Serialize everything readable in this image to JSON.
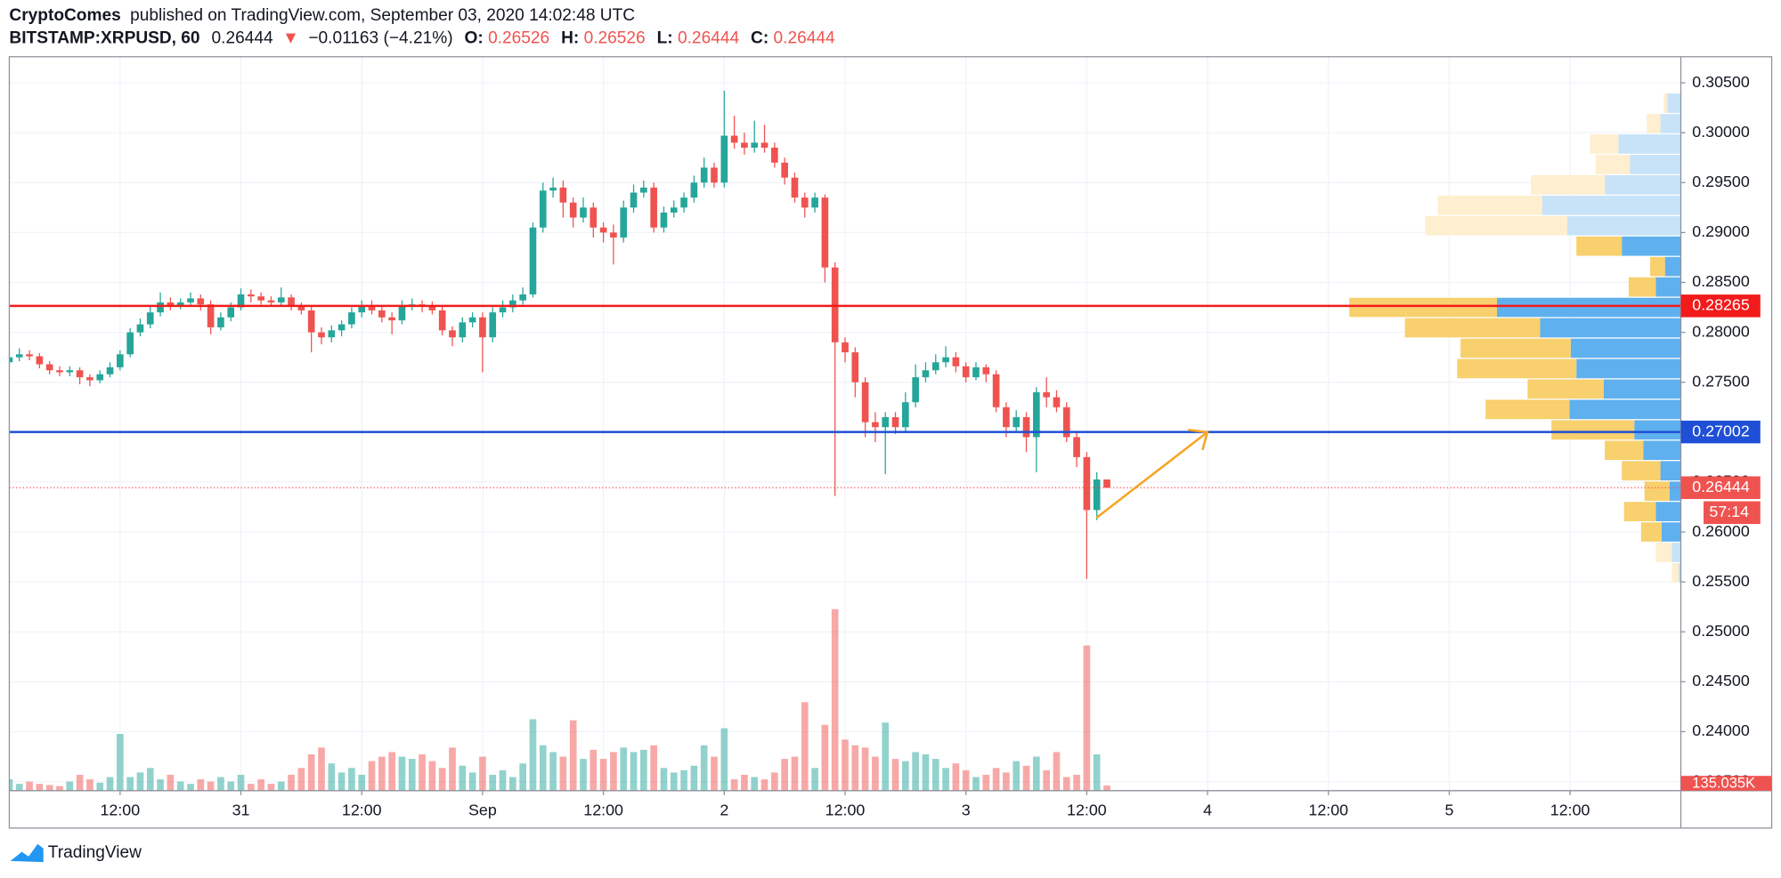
{
  "chart_data": {
    "type": "candlestick",
    "header": {
      "author": "CryptoComes",
      "published": "published on TradingView.com, September 03, 2020 14:02:48 UTC",
      "symbol": "BITSTAMP:XRPUSD, 60",
      "change_arrow": "▼",
      "change": "−0.01163 (−4.21%)",
      "ohlc_labels": [
        "O:",
        "H:",
        "L:",
        "C:"
      ]
    },
    "footer": "TradingView",
    "up_color": "#26a69a",
    "down_color": "#ef5350",
    "x": [
      0,
      1,
      2,
      3,
      4,
      5,
      6,
      7,
      8,
      9,
      10,
      11,
      12,
      13,
      14,
      15,
      16,
      17,
      18,
      19,
      20,
      21,
      22,
      23,
      24,
      25,
      26,
      27,
      28,
      29,
      30,
      31,
      32,
      33,
      34,
      35,
      36,
      37,
      38,
      39,
      40,
      41,
      42,
      43,
      44,
      45,
      46,
      47,
      48,
      49,
      50,
      51,
      52,
      53,
      54,
      55,
      56,
      57,
      58,
      59,
      60,
      61,
      62,
      63,
      64,
      65,
      66,
      67,
      68,
      69,
      70,
      71,
      72,
      73,
      74,
      75,
      76,
      77,
      78,
      79,
      80,
      81,
      82,
      83,
      84,
      85,
      86,
      87,
      88,
      89,
      90,
      91,
      92,
      93,
      94,
      95,
      96,
      97,
      98,
      99,
      100,
      101,
      102,
      103,
      104,
      105,
      106,
      107,
      108,
      109
    ],
    "open": [
      0.277,
      0.2775,
      0.2778,
      0.2776,
      0.2768,
      0.2762,
      0.276,
      0.2762,
      0.2755,
      0.2752,
      0.2758,
      0.2765,
      0.2778,
      0.28,
      0.2808,
      0.282,
      0.283,
      0.2826,
      0.283,
      0.2834,
      0.2828,
      0.2805,
      0.2815,
      0.2825,
      0.2838,
      0.2836,
      0.2832,
      0.283,
      0.2835,
      0.2826,
      0.2822,
      0.28,
      0.2795,
      0.2802,
      0.2808,
      0.282,
      0.2826,
      0.2822,
      0.2815,
      0.2812,
      0.2826,
      0.2828,
      0.2826,
      0.2822,
      0.2802,
      0.2795,
      0.281,
      0.2815,
      0.2795,
      0.282,
      0.2825,
      0.2832,
      0.2838,
      0.2905,
      0.2942,
      0.2945,
      0.293,
      0.2915,
      0.2925,
      0.2905,
      0.29,
      0.2895,
      0.2925,
      0.294,
      0.2945,
      0.2905,
      0.292,
      0.2925,
      0.2935,
      0.295,
      0.2965,
      0.295,
      0.2997,
      0.299,
      0.2985,
      0.299,
      0.2985,
      0.297,
      0.2955,
      0.2935,
      0.2925,
      0.2935,
      0.2865,
      0.279,
      0.278,
      0.275,
      0.271,
      0.2705,
      0.2715,
      0.2705,
      0.273,
      0.2755,
      0.2762,
      0.277,
      0.2775,
      0.2766,
      0.2755,
      0.2765,
      0.2758,
      0.2725,
      0.2705,
      0.2715,
      0.2695,
      0.274,
      0.2735,
      0.2725,
      0.2695,
      0.2675,
      0.2622,
      0.26526
    ],
    "high": [
      0.2782,
      0.2784,
      0.2782,
      0.2779,
      0.2771,
      0.2766,
      0.2766,
      0.2765,
      0.2758,
      0.2762,
      0.277,
      0.2782,
      0.2804,
      0.2814,
      0.2826,
      0.284,
      0.2835,
      0.2834,
      0.284,
      0.2838,
      0.2832,
      0.282,
      0.283,
      0.2844,
      0.2843,
      0.284,
      0.2836,
      0.2845,
      0.2838,
      0.283,
      0.2826,
      0.2805,
      0.2807,
      0.2812,
      0.2825,
      0.2832,
      0.2832,
      0.2826,
      0.282,
      0.2832,
      0.2834,
      0.2832,
      0.2831,
      0.2826,
      0.2806,
      0.2815,
      0.282,
      0.282,
      0.2825,
      0.2832,
      0.2838,
      0.2845,
      0.291,
      0.295,
      0.2955,
      0.2952,
      0.2935,
      0.2935,
      0.293,
      0.291,
      0.2908,
      0.2932,
      0.2948,
      0.2952,
      0.295,
      0.2926,
      0.2932,
      0.294,
      0.2957,
      0.2975,
      0.297,
      0.3042,
      0.3017,
      0.3,
      0.3012,
      0.3008,
      0.299,
      0.2975,
      0.296,
      0.294,
      0.294,
      0.2938,
      0.287,
      0.2795,
      0.2785,
      0.2755,
      0.272,
      0.272,
      0.272,
      0.274,
      0.2768,
      0.277,
      0.2778,
      0.2786,
      0.278,
      0.277,
      0.277,
      0.2768,
      0.2762,
      0.273,
      0.2722,
      0.272,
      0.2745,
      0.2755,
      0.2742,
      0.273,
      0.27,
      0.268,
      0.266,
      0.26526
    ],
    "low": [
      0.2765,
      0.2771,
      0.2772,
      0.2764,
      0.2758,
      0.2756,
      0.2756,
      0.2748,
      0.2746,
      0.2749,
      0.2755,
      0.2762,
      0.2775,
      0.2796,
      0.2804,
      0.2816,
      0.2822,
      0.2823,
      0.2826,
      0.2822,
      0.2798,
      0.2802,
      0.2811,
      0.2822,
      0.283,
      0.2828,
      0.2826,
      0.2827,
      0.2822,
      0.2818,
      0.278,
      0.2788,
      0.279,
      0.2796,
      0.2804,
      0.2815,
      0.2818,
      0.281,
      0.2798,
      0.2808,
      0.2822,
      0.282,
      0.2818,
      0.2797,
      0.2786,
      0.279,
      0.2805,
      0.276,
      0.279,
      0.2815,
      0.282,
      0.2828,
      0.2835,
      0.29,
      0.2935,
      0.2915,
      0.2905,
      0.291,
      0.2895,
      0.289,
      0.2868,
      0.289,
      0.292,
      0.2935,
      0.29,
      0.29,
      0.2915,
      0.292,
      0.293,
      0.2945,
      0.2945,
      0.2945,
      0.2984,
      0.2978,
      0.298,
      0.298,
      0.2965,
      0.2948,
      0.293,
      0.2915,
      0.292,
      0.285,
      0.2636,
      0.277,
      0.2735,
      0.2695,
      0.269,
      0.2658,
      0.2698,
      0.27,
      0.2725,
      0.275,
      0.2758,
      0.2765,
      0.276,
      0.275,
      0.2752,
      0.275,
      0.272,
      0.2695,
      0.27,
      0.268,
      0.266,
      0.2725,
      0.272,
      0.269,
      0.2665,
      0.2553,
      0.2612,
      0.26444
    ],
    "close": [
      0.2775,
      0.2778,
      0.2776,
      0.2768,
      0.2762,
      0.276,
      0.2762,
      0.2755,
      0.2752,
      0.2758,
      0.2765,
      0.2778,
      0.28,
      0.2808,
      0.282,
      0.283,
      0.2826,
      0.283,
      0.2834,
      0.2828,
      0.2805,
      0.2815,
      0.2825,
      0.2838,
      0.2836,
      0.2832,
      0.283,
      0.2835,
      0.2826,
      0.2822,
      0.28,
      0.2795,
      0.2802,
      0.2808,
      0.282,
      0.2826,
      0.2822,
      0.2815,
      0.2812,
      0.2826,
      0.2828,
      0.2826,
      0.2822,
      0.2802,
      0.2795,
      0.281,
      0.2815,
      0.2795,
      0.282,
      0.2825,
      0.2832,
      0.2838,
      0.2905,
      0.2942,
      0.2945,
      0.293,
      0.2915,
      0.2925,
      0.2905,
      0.29,
      0.2895,
      0.2925,
      0.294,
      0.2945,
      0.2905,
      0.292,
      0.2925,
      0.2935,
      0.295,
      0.2965,
      0.295,
      0.2997,
      0.299,
      0.2985,
      0.299,
      0.2985,
      0.297,
      0.2955,
      0.2935,
      0.2925,
      0.2935,
      0.2865,
      0.279,
      0.278,
      0.275,
      0.271,
      0.2705,
      0.2715,
      0.2705,
      0.273,
      0.2755,
      0.2762,
      0.277,
      0.2775,
      0.2766,
      0.2755,
      0.2765,
      0.2758,
      0.2725,
      0.2705,
      0.2715,
      0.2695,
      0.274,
      0.2735,
      0.2725,
      0.2695,
      0.2675,
      0.2622,
      0.26526,
      0.26444
    ],
    "volume": [
      300000,
      180000,
      240000,
      180000,
      150000,
      120000,
      240000,
      420000,
      300000,
      210000,
      360000,
      1500000,
      360000,
      480000,
      600000,
      300000,
      420000,
      240000,
      180000,
      300000,
      240000,
      360000,
      240000,
      420000,
      180000,
      300000,
      180000,
      240000,
      420000,
      600000,
      960000,
      1140000,
      720000,
      480000,
      600000,
      420000,
      780000,
      900000,
      1020000,
      900000,
      840000,
      960000,
      780000,
      600000,
      1140000,
      660000,
      480000,
      900000,
      420000,
      540000,
      360000,
      720000,
      1890000,
      1200000,
      1020000,
      900000,
      1860000,
      840000,
      1080000,
      840000,
      1020000,
      1140000,
      1020000,
      1080000,
      1200000,
      600000,
      480000,
      540000,
      660000,
      1200000,
      900000,
      1650000,
      300000,
      420000,
      360000,
      300000,
      480000,
      840000,
      900000,
      2340000,
      600000,
      1740000,
      4800000,
      1350000,
      1200000,
      1140000,
      900000,
      1800000,
      840000,
      780000,
      1020000,
      960000,
      840000,
      600000,
      720000,
      540000,
      360000,
      420000,
      600000,
      480000,
      780000,
      660000,
      900000,
      540000,
      1020000,
      360000,
      420000,
      3840000,
      960000,
      135035
    ],
    "volume_labels": [
      null,
      null,
      null,
      null,
      null,
      null,
      null,
      null,
      null,
      null,
      null,
      null,
      null,
      null,
      null,
      null,
      null,
      null,
      null,
      null,
      null,
      null,
      null,
      null,
      null,
      null,
      null,
      null,
      null,
      null,
      null,
      null,
      null,
      null,
      null,
      null,
      null,
      null,
      null,
      null,
      null,
      null,
      null,
      null,
      null,
      null,
      null,
      null,
      null,
      null,
      null,
      null,
      null,
      null,
      null,
      null,
      null,
      null,
      null,
      null,
      null,
      null,
      null,
      null,
      null,
      null,
      null,
      null,
      null,
      null,
      null,
      null,
      null,
      null,
      null,
      null,
      null,
      null,
      null,
      null,
      null,
      null,
      null,
      null,
      null,
      null,
      null,
      null,
      null,
      null,
      null,
      null,
      null,
      null,
      null,
      null,
      null,
      null,
      null,
      null,
      null,
      null,
      null,
      null,
      null,
      null,
      null,
      null,
      null,
      "135.035K"
    ],
    "vlim": [
      0,
      19410000
    ],
    "xlim": [
      0,
      166
    ],
    "xticks": [
      {
        "value": 11,
        "label": "12:00"
      },
      {
        "value": 23,
        "label": "31"
      },
      {
        "value": 35,
        "label": "12:00"
      },
      {
        "value": 47,
        "label": "Sep"
      },
      {
        "value": 59,
        "label": "12:00"
      },
      {
        "value": 71,
        "label": "2"
      },
      {
        "value": 83,
        "label": "12:00"
      },
      {
        "value": 95,
        "label": "3"
      },
      {
        "value": 107,
        "label": "12:00"
      },
      {
        "value": 119,
        "label": "4"
      },
      {
        "value": 131,
        "label": "12:00"
      },
      {
        "value": 143,
        "label": "5"
      },
      {
        "value": 155,
        "label": "12:00"
      }
    ],
    "ylim": [
      0.23409,
      0.30761
    ],
    "yticks": [
      {
        "value": 0.305,
        "label": "0.30500"
      },
      {
        "value": 0.3,
        "label": "0.30000"
      },
      {
        "value": 0.295,
        "label": "0.29500"
      },
      {
        "value": 0.29,
        "label": "0.29000"
      },
      {
        "value": 0.285,
        "label": "0.28500"
      },
      {
        "value": 0.28,
        "label": "0.28000"
      },
      {
        "value": 0.275,
        "label": "0.27500"
      },
      {
        "value": 0.27,
        "label": "0.27000"
      },
      {
        "value": 0.265,
        "label": "0.26500"
      },
      {
        "value": 0.26,
        "label": "0.26000"
      },
      {
        "value": 0.255,
        "label": "0.25500"
      },
      {
        "value": 0.25,
        "label": "0.25000"
      },
      {
        "value": 0.245,
        "label": "0.24500"
      },
      {
        "value": 0.24,
        "label": "0.24000"
      },
      {
        "value": 0.235,
        "label": "0.23500"
      }
    ],
    "grid": true,
    "hlines": [
      {
        "value": 0.28265,
        "color": "#f21b1b"
      },
      {
        "value": 0.27002,
        "color": "#1e4fd6"
      }
    ],
    "last_price_line": true,
    "countdown": "57:14",
    "profile": {
      "bins": [
        0.30398,
        0.30193,
        0.29989,
        0.29784,
        0.2958,
        0.29375,
        0.2917,
        0.28966,
        0.28761,
        0.28557,
        0.28352,
        0.28148,
        0.27943,
        0.27739,
        0.27534,
        0.2733,
        0.27125,
        0.2692,
        0.26716,
        0.26511,
        0.26307,
        0.26102,
        0.25898,
        0.25693,
        0.25489
      ],
      "xlim": [
        0,
        1472
      ],
      "value_area": [
        0.25898,
        0.28966
      ],
      "series": [
        {
          "color": "#5fb0ee",
          "light": "#c8e3f8",
          "values": [
            12,
            18,
            55,
            45,
            67,
            122,
            100,
            52,
            14,
            22,
            162,
            124,
            97,
            92,
            68,
            98,
            41,
            33,
            18,
            10,
            22,
            17,
            8,
            2
          ]
        },
        {
          "color": "#f8d06d",
          "light": "#fdefcf",
          "values": [
            3,
            12,
            25,
            30,
            65,
            92,
            125,
            40,
            13,
            24,
            130,
            119,
            97,
            105,
            67,
            74,
            73,
            34,
            34,
            22,
            28,
            18,
            14,
            6
          ]
        }
      ]
    }
  }
}
